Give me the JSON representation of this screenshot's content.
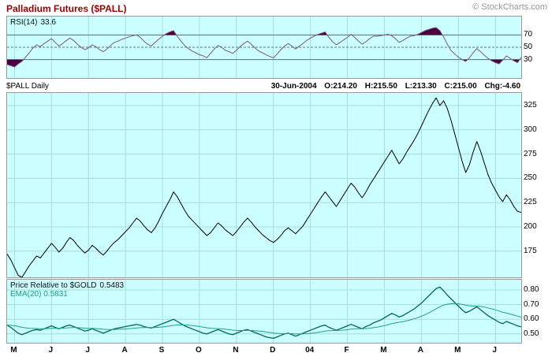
{
  "header": {
    "title": "Palladium Futures ($PALL)",
    "credit": "© StockCharts.com"
  },
  "rsi_panel": {
    "label": "RSI(14)",
    "value": "33.6"
  },
  "info": {
    "symbol_label": "$PALL Daily",
    "date": "30-Jun-2004",
    "open": "O:214.20",
    "high": "H:215.50",
    "low": "L:213.30",
    "close": "C:215.00",
    "change": "Chg:-4.60"
  },
  "pr_panel": {
    "label": "Price Relative to $GOLD",
    "value": "0.5483",
    "ema_label": "EMA(20) 0.5831"
  },
  "colors": {
    "panel_bg": "#ccffff",
    "grid": "#a5dcdc",
    "ref_solid": "#557788",
    "ref_dash": "#557788",
    "border": "#999999",
    "title": "#990000",
    "credit": "#999999",
    "rsi_line": "#7a5878",
    "rsi_fill": "#4a0040",
    "price_line": "#000000",
    "pr_line": "#006652",
    "ema_line": "#1da184"
  },
  "xaxis": {
    "labels": [
      "M",
      "J",
      "J",
      "A",
      "S",
      "O",
      "N",
      "D",
      "04",
      "F",
      "M",
      "A",
      "M",
      "J"
    ],
    "tick_indices": [
      2,
      12,
      22,
      32,
      42,
      52,
      62,
      72,
      82,
      92,
      102,
      112,
      122,
      132
    ]
  },
  "chart_data": [
    {
      "type": "line",
      "title": "RSI(14)",
      "current_value": 33.6,
      "ylim": [
        0,
        100
      ],
      "ref_lines": [
        {
          "value": 70,
          "dash": false
        },
        {
          "value": 50,
          "dash": true
        },
        {
          "value": 30,
          "dash": false
        }
      ],
      "fill_over": 70,
      "fill_under": 30,
      "axis_labels": [
        {
          "v": 70,
          "t": "70"
        },
        {
          "v": 50,
          "t": "50"
        },
        {
          "v": 30,
          "t": "30"
        }
      ],
      "series": [
        {
          "name": "RSI(14)",
          "color": "#7a5878",
          "fill": "#4a0040",
          "values": [
            22,
            20,
            18,
            23,
            27,
            34,
            41,
            49,
            54,
            51,
            56,
            60,
            64,
            58,
            52,
            56,
            61,
            65,
            61,
            55,
            50,
            46,
            49,
            54,
            51,
            46,
            43,
            47,
            53,
            58,
            60,
            63,
            65,
            67,
            69,
            70,
            66,
            60,
            55,
            52,
            58,
            63,
            68,
            72,
            75,
            77,
            68,
            60,
            53,
            48,
            44,
            41,
            38,
            36,
            33,
            40,
            47,
            53,
            50,
            45,
            43,
            40,
            45,
            51,
            56,
            60,
            55,
            49,
            44,
            41,
            38,
            35,
            33,
            39,
            46,
            52,
            56,
            52,
            47,
            52,
            56,
            61,
            65,
            68,
            71,
            73,
            75,
            66,
            59,
            54,
            58,
            62,
            66,
            71,
            66,
            60,
            55,
            59,
            64,
            68,
            68,
            69,
            70,
            71,
            69,
            64,
            58,
            61,
            65,
            68,
            69,
            71,
            74,
            77,
            79,
            81,
            82,
            77,
            67,
            55,
            45,
            39,
            34,
            30,
            27,
            33,
            41,
            48,
            43,
            37,
            32,
            28,
            25,
            23,
            29,
            36,
            32,
            28,
            25,
            33.6
          ]
        }
      ]
    },
    {
      "type": "line",
      "title": "$PALL Daily close",
      "ohlc_latest": {
        "date": "30-Jun-2004",
        "open": 214.2,
        "high": 215.5,
        "low": 213.3,
        "close": 215.0,
        "change": -4.6
      },
      "ylim": [
        148,
        338
      ],
      "gridlines": [
        175,
        200,
        225,
        250,
        275,
        300,
        325
      ],
      "axis_labels": [
        {
          "v": 325,
          "t": "325"
        },
        {
          "v": 300,
          "t": "300"
        },
        {
          "v": 275,
          "t": "275"
        },
        {
          "v": 250,
          "t": "250"
        },
        {
          "v": 225,
          "t": "225"
        },
        {
          "v": 200,
          "t": "200"
        },
        {
          "v": 175,
          "t": "175"
        }
      ],
      "series": [
        {
          "name": "$PALL close",
          "color": "#000000",
          "values": [
            172,
            166,
            158,
            150,
            148,
            154,
            160,
            165,
            170,
            168,
            173,
            178,
            183,
            179,
            174,
            178,
            184,
            189,
            186,
            181,
            177,
            173,
            176,
            181,
            178,
            174,
            171,
            175,
            180,
            184,
            187,
            191,
            195,
            199,
            204,
            209,
            206,
            201,
            197,
            194,
            199,
            206,
            214,
            221,
            228,
            236,
            231,
            224,
            217,
            211,
            207,
            203,
            199,
            195,
            191,
            194,
            199,
            204,
            201,
            197,
            194,
            191,
            195,
            200,
            205,
            209,
            205,
            200,
            196,
            192,
            189,
            186,
            184,
            187,
            191,
            196,
            199,
            196,
            193,
            197,
            201,
            207,
            213,
            219,
            225,
            231,
            236,
            231,
            226,
            221,
            227,
            233,
            239,
            245,
            241,
            235,
            230,
            236,
            243,
            249,
            255,
            261,
            267,
            273,
            279,
            272,
            265,
            270,
            277,
            283,
            289,
            296,
            304,
            312,
            320,
            327,
            333,
            325,
            330,
            322,
            310,
            296,
            282,
            268,
            256,
            264,
            277,
            288,
            278,
            266,
            254,
            245,
            238,
            231,
            226,
            233,
            228,
            221,
            216,
            215
          ]
        }
      ]
    },
    {
      "type": "line",
      "title": "Price Relative to $GOLD",
      "current_value": 0.5483,
      "ema20_value": 0.5831,
      "ylim": [
        0.44,
        0.87
      ],
      "gridlines": [
        0.5,
        0.6,
        0.7,
        0.8
      ],
      "axis_labels": [
        {
          "v": 0.8,
          "t": "0.80"
        },
        {
          "v": 0.7,
          "t": "0.70"
        },
        {
          "v": 0.6,
          "t": "0.60"
        },
        {
          "v": 0.5,
          "t": "0.50"
        }
      ],
      "series": [
        {
          "name": "Price Relative to $GOLD",
          "color": "#006652",
          "width": 1.3,
          "values": [
            0.56,
            0.545,
            0.525,
            0.505,
            0.495,
            0.505,
            0.515,
            0.525,
            0.53,
            0.525,
            0.535,
            0.545,
            0.555,
            0.545,
            0.535,
            0.545,
            0.555,
            0.56,
            0.55,
            0.54,
            0.53,
            0.52,
            0.525,
            0.535,
            0.525,
            0.515,
            0.505,
            0.515,
            0.525,
            0.535,
            0.54,
            0.545,
            0.55,
            0.555,
            0.56,
            0.565,
            0.56,
            0.55,
            0.545,
            0.54,
            0.55,
            0.56,
            0.57,
            0.58,
            0.59,
            0.6,
            0.585,
            0.57,
            0.555,
            0.545,
            0.535,
            0.525,
            0.515,
            0.505,
            0.5,
            0.51,
            0.52,
            0.53,
            0.52,
            0.51,
            0.5,
            0.495,
            0.505,
            0.515,
            0.525,
            0.53,
            0.52,
            0.51,
            0.5,
            0.49,
            0.48,
            0.475,
            0.47,
            0.48,
            0.49,
            0.5,
            0.505,
            0.495,
            0.485,
            0.495,
            0.505,
            0.515,
            0.525,
            0.535,
            0.545,
            0.555,
            0.56,
            0.545,
            0.535,
            0.525,
            0.535,
            0.545,
            0.555,
            0.565,
            0.555,
            0.545,
            0.535,
            0.55,
            0.56,
            0.575,
            0.585,
            0.595,
            0.61,
            0.625,
            0.64,
            0.63,
            0.615,
            0.625,
            0.64,
            0.655,
            0.67,
            0.69,
            0.71,
            0.735,
            0.76,
            0.785,
            0.81,
            0.82,
            0.795,
            0.765,
            0.74,
            0.715,
            0.69,
            0.665,
            0.645,
            0.655,
            0.67,
            0.685,
            0.665,
            0.645,
            0.625,
            0.61,
            0.595,
            0.58,
            0.57,
            0.585,
            0.575,
            0.565,
            0.555,
            0.5483
          ]
        },
        {
          "name": "EMA(20)",
          "color": "#1da184",
          "width": 1,
          "derived": "ema",
          "period": 20
        }
      ]
    }
  ]
}
